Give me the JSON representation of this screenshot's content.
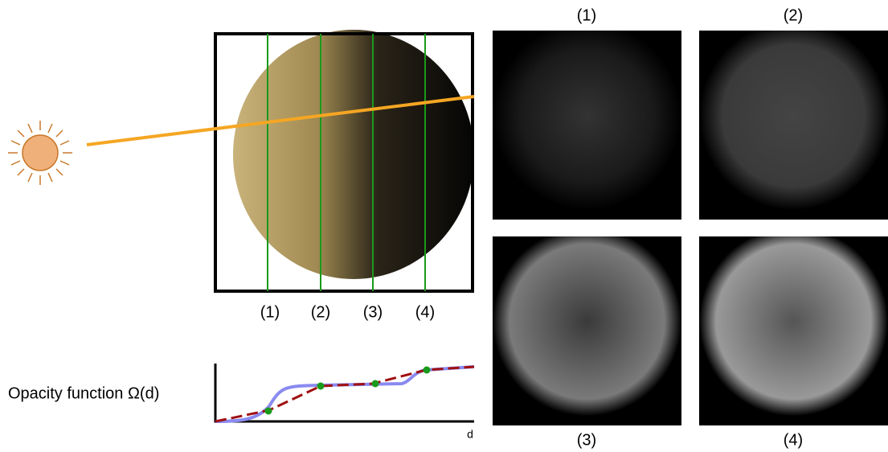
{
  "slice_labels": [
    "(1)",
    "(2)",
    "(3)",
    "(4)"
  ],
  "panel_labels": [
    "(1)",
    "(2)",
    "(3)",
    "(4)"
  ],
  "plot": {
    "ylabel": "Opacity function Ω(d)",
    "xlabel": "d"
  }
}
